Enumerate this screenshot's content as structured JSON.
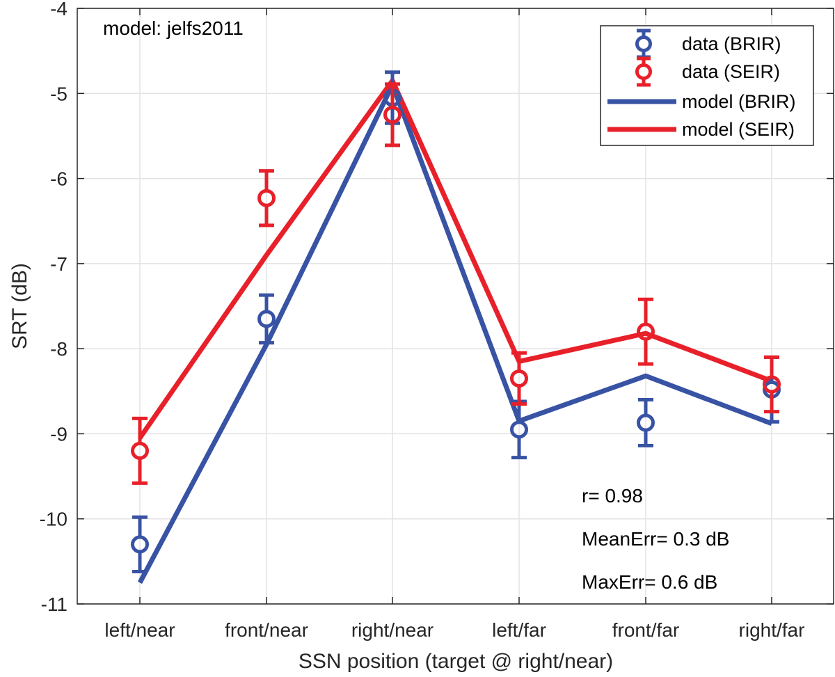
{
  "chart_data": {
    "type": "line",
    "title": "",
    "xlabel": "SSN position (target @ right/near)",
    "ylabel": "SRT (dB)",
    "ylim": [
      -11,
      -4
    ],
    "yticks": [
      -11,
      -10,
      -9,
      -8,
      -7,
      -6,
      -5,
      -4
    ],
    "ytick_labels": [
      "-11",
      "-10",
      "-9",
      "-8",
      "-7",
      "-6",
      "-5",
      "-4"
    ],
    "categories": [
      "left/near",
      "front/near",
      "right/near",
      "left/far",
      "front/far",
      "right/far"
    ],
    "grid": true,
    "legend_position": "top-right",
    "series": [
      {
        "name": "data (BRIR)",
        "kind": "errorbar",
        "color": "#3853A4",
        "values": [
          -10.3,
          -7.65,
          -5.05,
          -8.95,
          -8.87,
          -8.48
        ],
        "err_low": [
          0.32,
          0.28,
          0.3,
          0.33,
          0.27,
          0.38
        ],
        "err_high": [
          0.32,
          0.28,
          0.3,
          0.33,
          0.27,
          0.38
        ]
      },
      {
        "name": "data (SEIR)",
        "kind": "errorbar",
        "color": "#E8202A",
        "values": [
          -9.2,
          -6.23,
          -5.25,
          -8.35,
          -7.8,
          -8.42
        ],
        "err_low": [
          0.38,
          0.32,
          0.36,
          0.3,
          0.38,
          0.32
        ],
        "err_high": [
          0.38,
          0.32,
          0.36,
          0.3,
          0.38,
          0.32
        ]
      },
      {
        "name": "model (BRIR)",
        "kind": "line",
        "color": "#3853A4",
        "values": [
          -10.75,
          -7.95,
          -4.9,
          -8.85,
          -8.32,
          -8.88
        ]
      },
      {
        "name": "model (SEIR)",
        "kind": "line",
        "color": "#E8202A",
        "values": [
          -9.05,
          -6.9,
          -4.85,
          -8.15,
          -7.82,
          -8.38
        ]
      }
    ],
    "annotations": {
      "model_label": "model: jelfs2011",
      "r": "r= 0.98",
      "mean_err": "MeanErr= 0.3 dB",
      "max_err": "MaxErr= 0.6 dB"
    }
  }
}
